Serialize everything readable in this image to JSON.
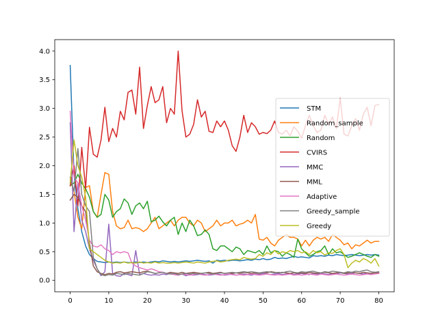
{
  "chart_data": {
    "type": "line",
    "title": "",
    "xlabel": "",
    "ylabel": "",
    "xlim": [
      -4,
      84
    ],
    "ylim": [
      -0.2,
      4.2
    ],
    "xticks": [
      0,
      10,
      20,
      30,
      40,
      50,
      60,
      70,
      80
    ],
    "yticks": [
      0.0,
      0.5,
      1.0,
      1.5,
      2.0,
      2.5,
      3.0,
      3.5,
      4.0
    ],
    "xtick_labels": [
      "0",
      "10",
      "20",
      "30",
      "40",
      "50",
      "60",
      "70",
      "80"
    ],
    "ytick_labels": [
      "0.0",
      "0.5",
      "1.0",
      "1.5",
      "2.0",
      "2.5",
      "3.0",
      "3.5",
      "4.0"
    ],
    "grid": false,
    "legend_position": "center-right",
    "x": [
      0,
      1,
      2,
      3,
      4,
      5,
      6,
      7,
      8,
      9,
      10,
      11,
      12,
      13,
      14,
      15,
      16,
      17,
      18,
      19,
      20,
      21,
      22,
      23,
      24,
      25,
      26,
      27,
      28,
      29,
      30,
      31,
      32,
      33,
      34,
      35,
      36,
      37,
      38,
      39,
      40,
      41,
      42,
      43,
      44,
      45,
      46,
      47,
      48,
      49,
      50,
      51,
      52,
      53,
      54,
      55,
      56,
      57,
      58,
      59,
      60,
      61,
      62,
      63,
      64,
      65,
      66,
      67,
      68,
      69,
      70,
      71,
      72,
      73,
      74,
      75,
      76,
      77,
      78,
      79,
      80
    ],
    "series": [
      {
        "name": "STM",
        "color": "#1f77b4",
        "values": [
          3.75,
          1.85,
          1.25,
          0.85,
          0.6,
          0.45,
          0.38,
          0.33,
          0.32,
          0.31,
          0.32,
          0.31,
          0.32,
          0.31,
          0.32,
          0.31,
          0.31,
          0.32,
          0.31,
          0.32,
          0.31,
          0.32,
          0.33,
          0.32,
          0.34,
          0.33,
          0.32,
          0.33,
          0.32,
          0.33,
          0.34,
          0.33,
          0.34,
          0.35,
          0.34,
          0.33,
          0.34,
          0.3,
          0.35,
          0.34,
          0.35,
          0.34,
          0.35,
          0.35,
          0.34,
          0.35,
          0.36,
          0.35,
          0.37,
          0.36,
          0.38,
          0.36,
          0.37,
          0.4,
          0.38,
          0.39,
          0.38,
          0.4,
          0.42,
          0.4,
          0.41,
          0.4,
          0.39,
          0.43,
          0.42,
          0.43,
          0.42,
          0.44,
          0.43,
          0.45,
          0.44,
          0.43,
          0.44,
          0.45,
          0.44,
          0.43,
          0.44,
          0.45,
          0.44,
          0.45,
          0.44
        ]
      },
      {
        "name": "Random_sample",
        "color": "#ff7f0e",
        "values": [
          1.75,
          1.55,
          1.1,
          0.9,
          1.62,
          1.65,
          1.2,
          1.1,
          1.5,
          1.88,
          1.85,
          1.2,
          0.95,
          0.9,
          0.92,
          1.05,
          0.9,
          0.92,
          0.9,
          0.85,
          0.9,
          1.0,
          1.1,
          0.9,
          0.95,
          1.0,
          1.05,
          0.95,
          1.05,
          1.1,
          1.1,
          1.0,
          0.95,
          1.05,
          1.0,
          0.85,
          0.9,
          0.95,
          1.05,
          0.95,
          1.0,
          1.0,
          1.05,
          0.95,
          0.98,
          1.0,
          1.05,
          1.0,
          1.15,
          0.72,
          0.7,
          0.75,
          0.65,
          0.6,
          0.7,
          0.75,
          0.8,
          0.75,
          0.75,
          0.72,
          0.6,
          0.7,
          0.6,
          0.7,
          0.75,
          0.72,
          0.75,
          0.68,
          0.8,
          0.75,
          0.7,
          0.62,
          0.65,
          0.55,
          0.62,
          0.6,
          0.65,
          0.7,
          0.65,
          0.68,
          0.68
        ]
      },
      {
        "name": "Random",
        "color": "#2ca02c",
        "values": [
          1.65,
          1.7,
          1.85,
          1.7,
          1.6,
          1.45,
          1.2,
          1.1,
          1.15,
          1.5,
          1.4,
          1.1,
          1.2,
          1.25,
          1.42,
          1.35,
          1.15,
          1.3,
          1.35,
          1.25,
          1.38,
          1.02,
          1.05,
          1.12,
          1.02,
          0.95,
          1.05,
          1.1,
          0.8,
          1.0,
          0.85,
          1.05,
          0.95,
          0.78,
          0.8,
          0.88,
          0.8,
          0.55,
          0.52,
          0.6,
          0.6,
          0.55,
          0.5,
          0.58,
          0.55,
          0.45,
          0.52,
          0.5,
          0.48,
          0.52,
          0.45,
          0.6,
          0.48,
          0.52,
          0.5,
          0.42,
          0.48,
          0.45,
          0.4,
          0.72,
          0.55,
          0.48,
          0.42,
          0.45,
          0.5,
          0.52,
          0.6,
          0.45,
          0.55,
          0.48,
          0.5,
          0.45,
          0.4,
          0.42,
          0.45,
          0.48,
          0.45,
          0.42,
          0.4,
          0.45,
          0.42
        ]
      },
      {
        "name": "CVIRS",
        "color": "#d62728",
        "values": [
          1.65,
          2.0,
          1.3,
          2.32,
          1.6,
          2.67,
          2.2,
          2.15,
          2.45,
          3.02,
          2.42,
          2.65,
          2.5,
          2.95,
          2.8,
          3.28,
          3.32,
          2.9,
          3.72,
          2.65,
          3.05,
          3.38,
          3.1,
          3.15,
          3.38,
          2.75,
          3.0,
          2.9,
          4.0,
          2.96,
          2.5,
          2.55,
          2.72,
          3.15,
          2.85,
          2.95,
          2.6,
          2.58,
          2.78,
          2.68,
          2.78,
          2.62,
          2.35,
          2.25,
          2.5,
          2.88,
          2.58,
          2.75,
          2.68,
          2.55,
          2.58,
          2.56,
          2.62,
          2.78,
          2.58,
          2.55,
          2.62,
          2.52,
          2.68,
          2.6,
          2.48,
          2.7,
          2.88,
          2.7,
          2.58,
          2.62,
          2.88,
          2.72,
          2.85,
          2.65,
          3.18,
          2.55,
          2.52,
          2.7,
          2.82,
          2.62,
          2.9,
          3.02,
          2.7,
          3.05,
          3.07
        ]
      },
      {
        "name": "MMC",
        "color": "#9467bd",
        "values": [
          2.75,
          0.85,
          1.7,
          1.05,
          0.85,
          0.55,
          0.35,
          0.2,
          0.08,
          0.15,
          0.98,
          0.12,
          0.08,
          0.07,
          0.12,
          0.1,
          0.08,
          0.52,
          0.1,
          0.12,
          0.1,
          0.09,
          0.1,
          0.09,
          0.11,
          0.1,
          0.12,
          0.1,
          0.09,
          0.11,
          0.08,
          0.1,
          0.09,
          0.1,
          0.11,
          0.1,
          0.09,
          0.1,
          0.11,
          0.1,
          0.09,
          0.1,
          0.11,
          0.09,
          0.1,
          0.11,
          0.1,
          0.09,
          0.11,
          0.1,
          0.12,
          0.11,
          0.1,
          0.11,
          0.12,
          0.1,
          0.11,
          0.12,
          0.1,
          0.11,
          0.12,
          0.11,
          0.1,
          0.12,
          0.11,
          0.12,
          0.11,
          0.1,
          0.12,
          0.11,
          0.13,
          0.12,
          0.11,
          0.12,
          0.13,
          0.12,
          0.11,
          0.13,
          0.12,
          0.14,
          0.13
        ]
      },
      {
        "name": "MML",
        "color": "#8c564b",
        "values": [
          1.4,
          1.5,
          1.45,
          1.3,
          1.2,
          0.65,
          0.25,
          0.15,
          0.12,
          0.1,
          0.12,
          0.11,
          0.14,
          0.15,
          0.13,
          0.14,
          0.15,
          0.14,
          0.13,
          0.15,
          0.16,
          0.14,
          0.12,
          0.13,
          0.14,
          0.12,
          0.14,
          0.13,
          0.12,
          0.14,
          0.12,
          0.13,
          0.14,
          0.13,
          0.12,
          0.13,
          0.14,
          0.12,
          0.13,
          0.14,
          0.12,
          0.13,
          0.12,
          0.13,
          0.12,
          0.14,
          0.13,
          0.12,
          0.13,
          0.12,
          0.14,
          0.13,
          0.15,
          0.14,
          0.13,
          0.14,
          0.13,
          0.12,
          0.13,
          0.12,
          0.13,
          0.12,
          0.14,
          0.13,
          0.12,
          0.13,
          0.14,
          0.13,
          0.12,
          0.13,
          0.14,
          0.12,
          0.13,
          0.14,
          0.13,
          0.12,
          0.14,
          0.13,
          0.12,
          0.13,
          0.13
        ]
      },
      {
        "name": "Adaptive",
        "color": "#e377c2",
        "values": [
          2.95,
          1.8,
          1.7,
          1.3,
          1.05,
          0.7,
          0.6,
          0.58,
          0.62,
          0.55,
          0.52,
          0.45,
          0.5,
          0.48,
          0.5,
          0.48,
          0.3,
          0.25,
          0.22,
          0.2,
          0.18,
          0.2,
          0.18,
          0.15,
          0.14,
          0.12,
          0.11,
          0.1,
          0.09,
          0.11,
          0.1,
          0.09,
          0.1,
          0.11,
          0.1,
          0.09,
          0.1,
          0.11,
          0.1,
          0.09,
          0.1,
          0.11,
          0.1,
          0.09,
          0.1,
          0.09,
          0.1,
          0.11,
          0.1,
          0.09,
          0.1,
          0.11,
          0.1,
          0.09,
          0.1,
          0.09,
          0.1,
          0.11,
          0.09,
          0.1,
          0.09,
          0.1,
          0.11,
          0.1,
          0.09,
          0.11,
          0.1,
          0.09,
          0.1,
          0.11,
          0.1,
          0.09,
          0.1,
          0.11,
          0.1,
          0.09,
          0.1,
          0.11,
          0.1,
          0.11,
          0.12
        ]
      },
      {
        "name": "Greedy_sample",
        "color": "#7f7f7f",
        "values": [
          1.8,
          1.55,
          2.3,
          1.5,
          1.3,
          1.2,
          0.4,
          0.2,
          0.1,
          0.08,
          0.1,
          0.09,
          0.12,
          0.11,
          0.1,
          0.12,
          0.11,
          0.1,
          0.09,
          0.12,
          0.15,
          0.14,
          0.12,
          0.13,
          0.14,
          0.12,
          0.11,
          0.12,
          0.1,
          0.11,
          0.12,
          0.11,
          0.12,
          0.11,
          0.12,
          0.13,
          0.12,
          0.11,
          0.12,
          0.13,
          0.12,
          0.13,
          0.14,
          0.13,
          0.14,
          0.15,
          0.14,
          0.15,
          0.14,
          0.13,
          0.14,
          0.15,
          0.14,
          0.13,
          0.14,
          0.13,
          0.15,
          0.16,
          0.14,
          0.13,
          0.15,
          0.14,
          0.15,
          0.16,
          0.14,
          0.13,
          0.15,
          0.14,
          0.16,
          0.15,
          0.14,
          0.13,
          0.15,
          0.14,
          0.16,
          0.15,
          0.17,
          0.18,
          0.15,
          0.14,
          0.15
        ]
      },
      {
        "name": "Greedy",
        "color": "#bcbd22",
        "values": [
          1.7,
          2.45,
          2.0,
          1.8,
          1.45,
          0.55,
          0.5,
          0.45,
          0.4,
          0.35,
          0.32,
          0.3,
          0.31,
          0.3,
          0.32,
          0.3,
          0.31,
          0.3,
          0.32,
          0.3,
          0.31,
          0.3,
          0.32,
          0.3,
          0.31,
          0.3,
          0.3,
          0.31,
          0.3,
          0.31,
          0.32,
          0.31,
          0.3,
          0.32,
          0.31,
          0.3,
          0.32,
          0.33,
          0.34,
          0.32,
          0.33,
          0.35,
          0.36,
          0.37,
          0.36,
          0.4,
          0.38,
          0.37,
          0.38,
          0.45,
          0.42,
          0.48,
          0.45,
          0.52,
          0.46,
          0.5,
          0.48,
          0.52,
          0.5,
          0.52,
          0.48,
          0.5,
          0.45,
          0.52,
          0.48,
          0.5,
          0.44,
          0.48,
          0.47,
          0.52,
          0.55,
          0.45,
          0.22,
          0.3,
          0.35,
          0.32,
          0.38,
          0.35,
          0.3,
          0.38,
          0.25
        ]
      }
    ]
  }
}
